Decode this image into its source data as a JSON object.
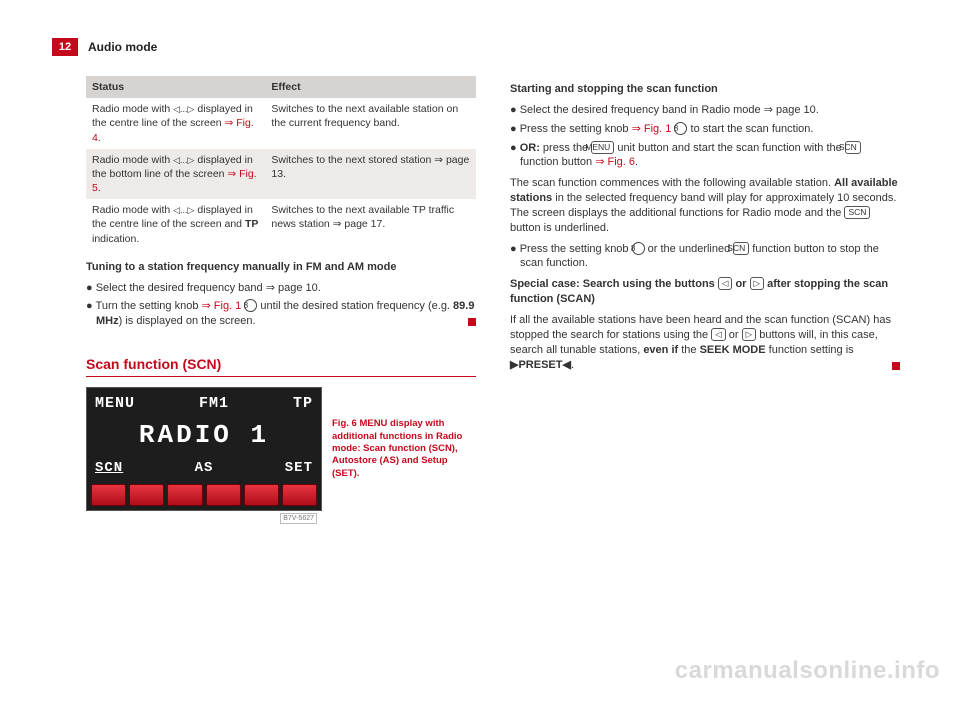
{
  "page": {
    "number": "12",
    "section": "Audio mode"
  },
  "table": {
    "headers": [
      "Status",
      "Effect"
    ],
    "rows": [
      {
        "status_pre": "Radio mode with ",
        "status_sym": "◁...▷",
        "status_post": " displayed in the centre line of the screen ",
        "status_ref": "⇒ Fig. 4",
        "status_tail": ".",
        "effect": "Switches to the next available station on the current frequency band."
      },
      {
        "status_pre": "Radio mode with ",
        "status_sym": "◁...▷",
        "status_post": " displayed in the bottom line of the screen ",
        "status_ref": "⇒ Fig. 5",
        "status_tail": ".",
        "effect": "Switches to the next stored station ⇒ page 13."
      },
      {
        "status_pre": "Radio mode with ",
        "status_sym": "◁...▷",
        "status_post": " displayed in the centre line of the screen and ",
        "status_bold": "TP",
        "status_tail": " indication.",
        "effect": "Switches to the next available TP traffic news station ⇒ page 17."
      }
    ]
  },
  "left": {
    "h1": "Tuning to a station frequency manually in FM and AM mode",
    "b1": "Select the desired frequency band ⇒ page 10.",
    "b2_pre": "Turn the setting knob ",
    "b2_ref": "⇒ Fig. 1",
    "b2_num": "8",
    "b2_mid": " until the desired station frequency (e.g. ",
    "b2_bold": "89.9 MHz",
    "b2_post": ") is displayed on the screen.",
    "section": "Scan function (SCN)",
    "radio": {
      "menu": "MENU",
      "fm1": "FM1",
      "tp": "TP",
      "title": "RADIO 1",
      "scn": "SCN",
      "as": "AS",
      "set": "SET",
      "code": "B7V-5627"
    },
    "caption": "Fig. 6   MENU display with additional functions in Radio mode: Scan function (SCN), Autostore (AS) and Setup (SET)."
  },
  "right": {
    "h1": "Starting and stopping the scan function",
    "b1": "Select the desired frequency band in Radio mode ⇒ page 10.",
    "b2_pre": "Press the setting knob ",
    "b2_ref": "⇒ Fig. 1",
    "b2_num": "8",
    "b2_post": " to start the scan function.",
    "b3_bold": "OR:",
    "b3_pre": " press the ",
    "b3_key1": "MENU",
    "b3_mid1": " unit button and start the scan function with the ",
    "b3_key2": "SCN",
    "b3_mid2": " function button ",
    "b3_ref": "⇒ Fig. 6",
    "b3_post": ".",
    "p1_pre": "The scan function commences with the following available station. ",
    "p1_bold": "All available stations",
    "p1_mid": " in the selected frequency band will play for approximately 10 seconds. The screen displays the additional functions for Radio mode and the ",
    "p1_key": "SCN",
    "p1_post": " button is underlined.",
    "b4_pre": "Press the setting knob ",
    "b4_num": "8",
    "b4_mid": " or the underlined ",
    "b4_key": "SCN",
    "b4_post": " function button to stop the scan function.",
    "h2_pre": "Special case: Search using the buttons ",
    "h2_k1": "◁",
    "h2_mid": " or ",
    "h2_k2": "▷",
    "h2_post": " after stopping the scan function (SCAN)",
    "p2_pre": "If all the available stations have been heard and the scan function (SCAN) has stopped the search for stations using the ",
    "p2_k1": "◁",
    "p2_mid1": " or ",
    "p2_k2": "▷",
    "p2_mid2": " buttons will, in this case, search all tunable stations, ",
    "p2_bold1": "even if",
    "p2_mid3": " the ",
    "p2_bold2": "SEEK MODE",
    "p2_mid4": " function setting is ",
    "p2_bold3": "▶PRESET◀",
    "p2_post": "."
  },
  "watermark": "carmanualsonline.info"
}
